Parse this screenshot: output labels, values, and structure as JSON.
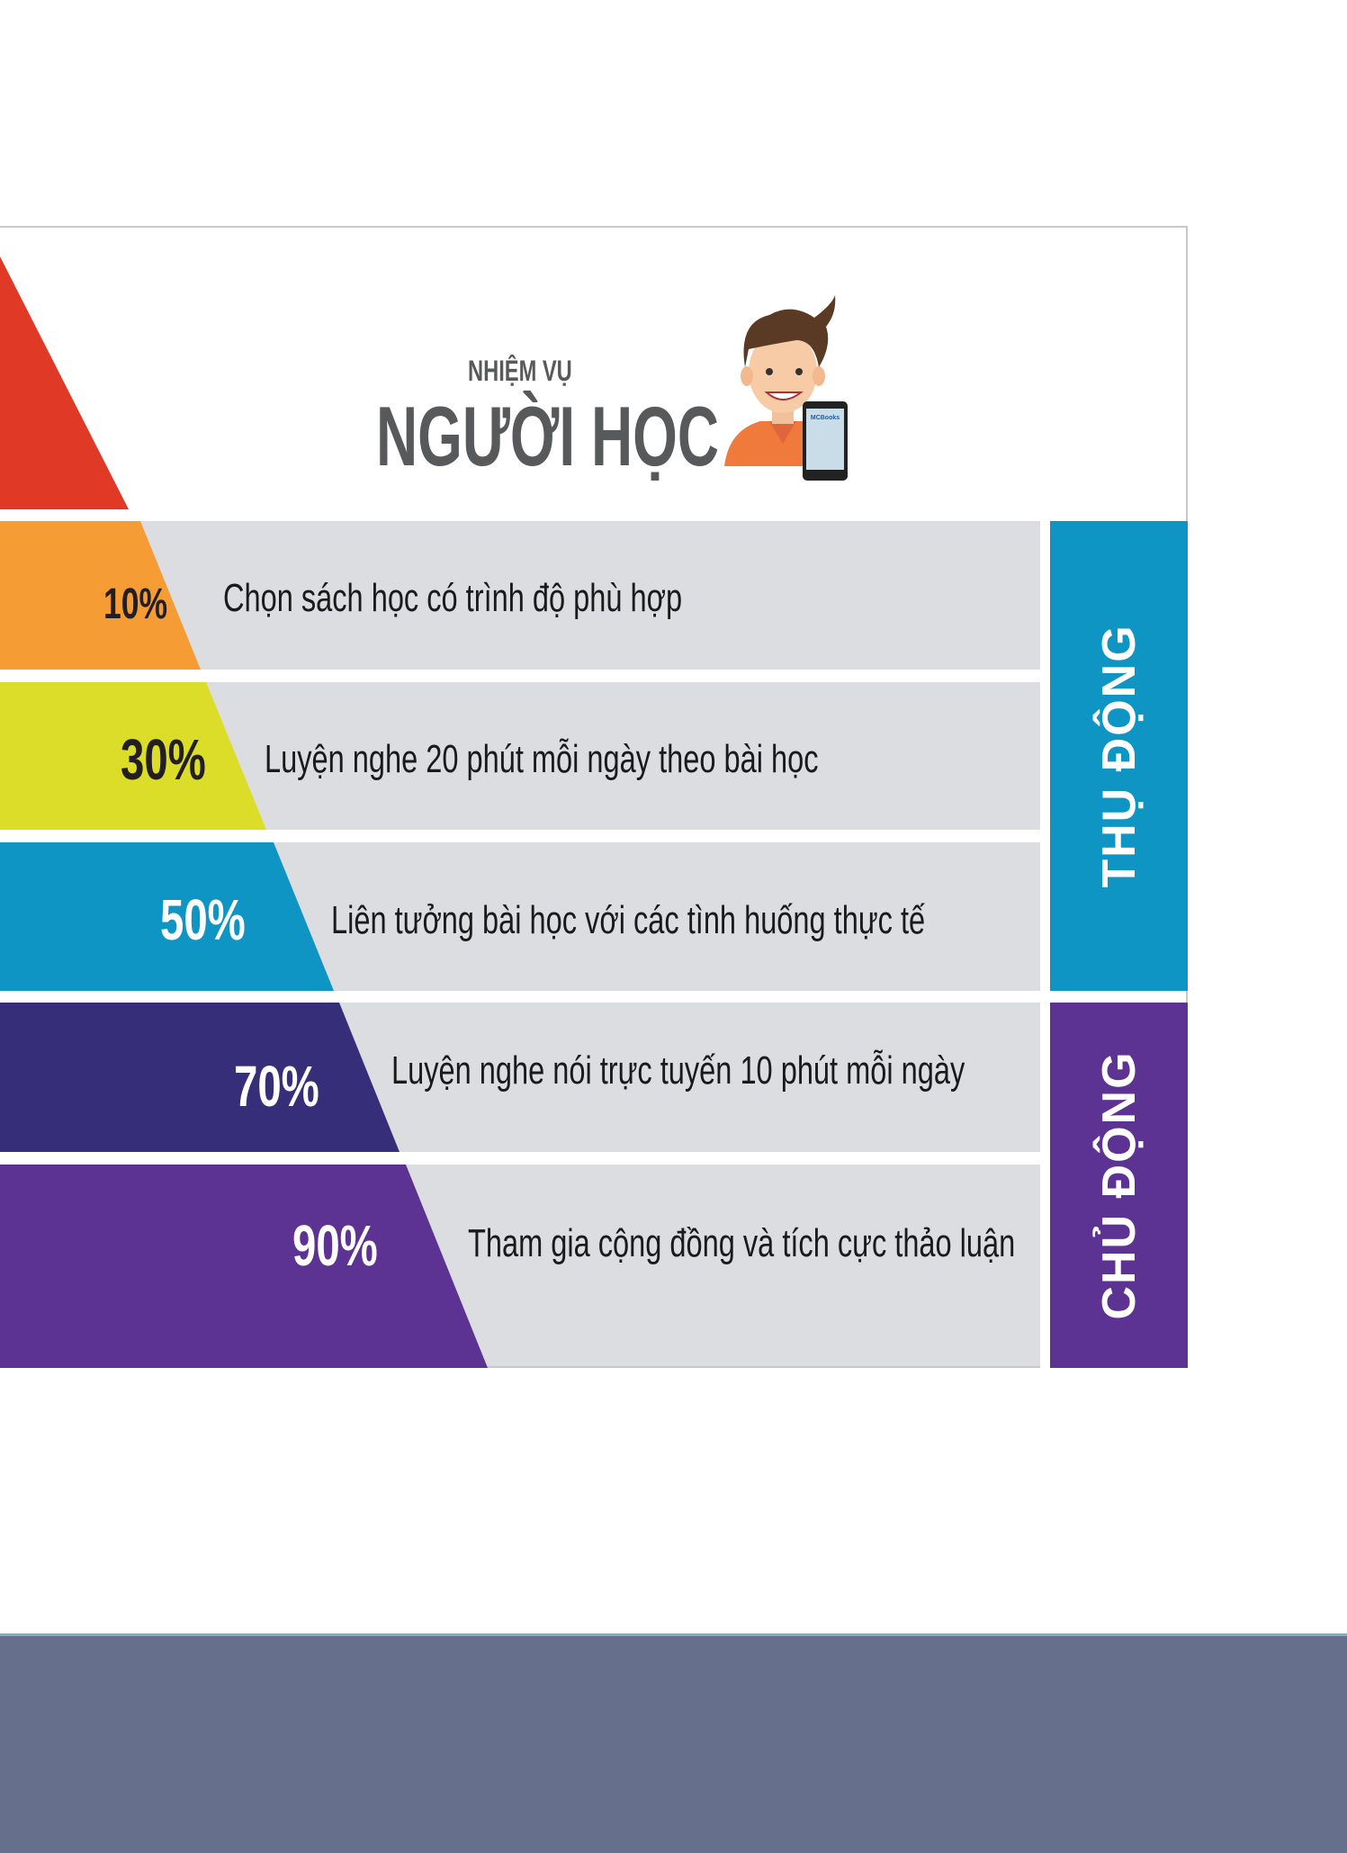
{
  "header": {
    "subtitle": "NHIỆM VỤ",
    "title": "NGƯỜI HỌC",
    "phone_brand": "MCBooks"
  },
  "colors": {
    "red": "#e03a27",
    "orange": "#f59c34",
    "yellow": "#dbdd28",
    "blue": "#0f95c4",
    "navy": "#372e7a",
    "purple": "#5c3292",
    "row_bg": "#dcdde0",
    "footer": "#66708d",
    "title_gray": "#58595b"
  },
  "rows": [
    {
      "percent": "10%",
      "text": "Chọn sách học có trình độ phù hợp"
    },
    {
      "percent": "30%",
      "text": "Luyện nghe 20 phút mỗi ngày theo bài học"
    },
    {
      "percent": "50%",
      "text": "Liên tưởng bài học với các tình huống thực tế"
    },
    {
      "percent": "70%",
      "text": "Luyện nghe nói trực tuyến 10 phút mỗi ngày"
    },
    {
      "percent": "90%",
      "text": "Tham gia cộng đồng và tích cực thảo luận"
    }
  ],
  "side_labels": {
    "passive": "THỤ ĐỘNG",
    "active": "CHỦ ĐỘNG"
  }
}
